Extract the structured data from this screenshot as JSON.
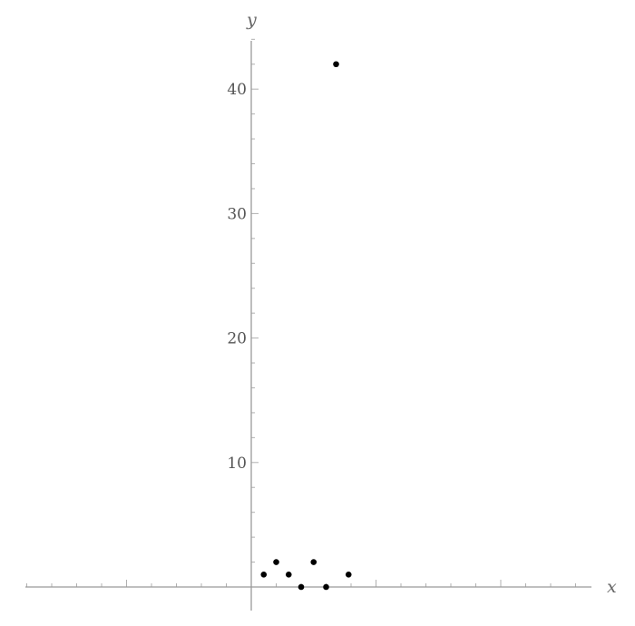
{
  "chart_data": {
    "type": "scatter",
    "xlabel": "x",
    "ylabel": "y",
    "xlim": [
      -9,
      13.5
    ],
    "ylim": [
      -1.8,
      44
    ],
    "yticks": [
      10,
      20,
      30,
      40
    ],
    "ytick_labels": [
      "10",
      "20",
      "30",
      "40"
    ],
    "x_major_ticks": [
      -5,
      5,
      10
    ],
    "x_minor_step": 1,
    "y_minor_step": 2,
    "grid": false,
    "point_color": "#000000",
    "points": [
      {
        "x": 0.5,
        "y": 1
      },
      {
        "x": 1,
        "y": 2
      },
      {
        "x": 1.5,
        "y": 1
      },
      {
        "x": 2,
        "y": 0
      },
      {
        "x": 2.5,
        "y": 2
      },
      {
        "x": 3,
        "y": 0
      },
      {
        "x": 3.4,
        "y": 42
      },
      {
        "x": 3.9,
        "y": 1
      }
    ]
  }
}
